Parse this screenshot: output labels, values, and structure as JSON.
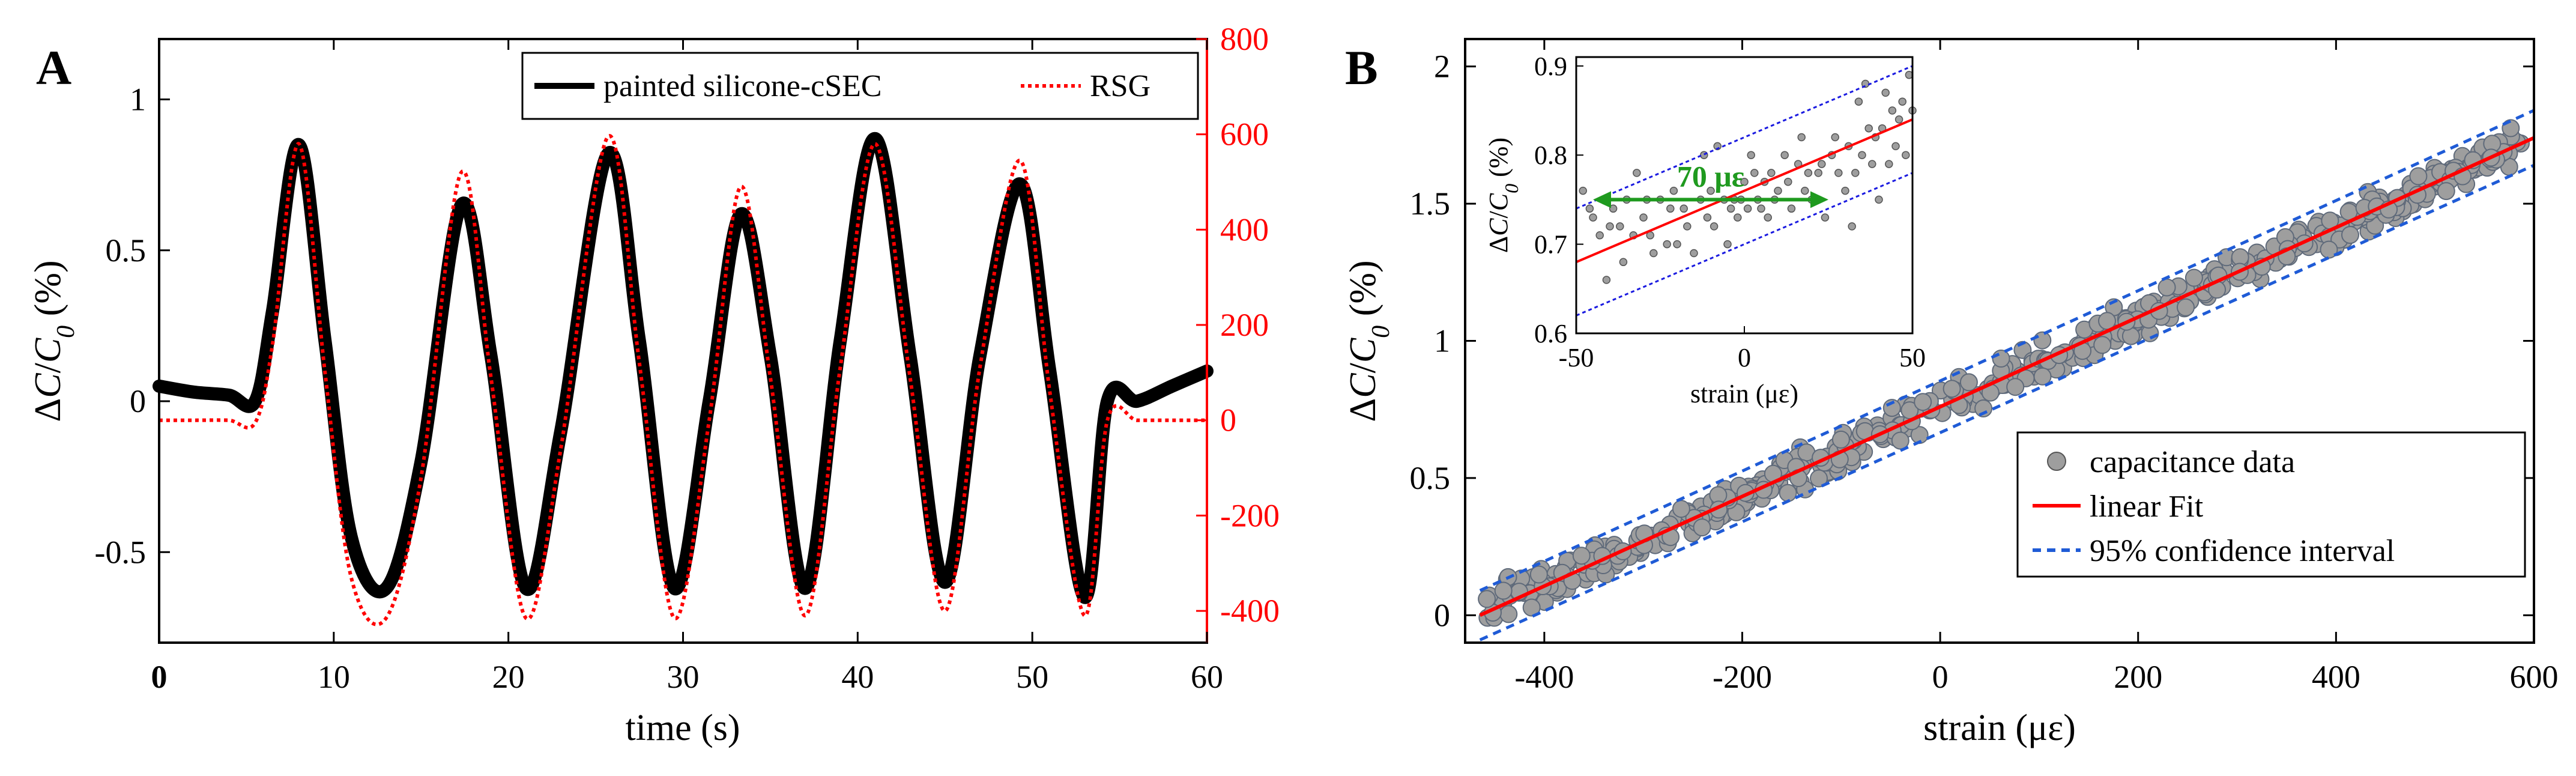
{
  "chart_data": [
    {
      "panel": "A",
      "type": "line",
      "xlabel": "time (s)",
      "ylabel_left": "ΔC/C₀ (%)",
      "ylabel_left_parts": {
        "delta": "Δ",
        "c": "C",
        "slash": "/",
        "c0": "C",
        "sub": "0",
        "unit": " (%)"
      },
      "ylabel_right": "",
      "xlim": [
        0,
        60
      ],
      "ylim_left": [
        -0.8,
        1.2
      ],
      "ylim_right": [
        -466.7,
        800
      ],
      "xticks": [
        "0",
        "10",
        "20",
        "30",
        "40",
        "50",
        "60"
      ],
      "yticks_left": [
        "-0.5",
        "0",
        "0.5",
        "1"
      ],
      "yticks_right": [
        "-400",
        "-200",
        "0",
        "200",
        "400",
        "600",
        "800"
      ],
      "grid": false,
      "legend_position": "top-right",
      "series": [
        {
          "name": "painted silicone-cSEC",
          "axis": "left",
          "color": "#000000",
          "style": "solid-thick",
          "x": [
            0,
            2,
            4,
            5.5,
            6.5,
            8,
            9.5,
            11,
            13,
            15,
            17.3,
            19,
            21,
            23,
            25.7,
            27.5,
            29.5,
            31.5,
            33.3,
            35,
            37,
            39,
            41,
            43,
            45,
            47,
            49.3,
            51,
            53,
            54.3,
            56,
            58,
            60
          ],
          "y": [
            0.05,
            0.03,
            0.02,
            0.0,
            0.3,
            0.85,
            0.2,
            -0.45,
            -0.62,
            -0.2,
            0.65,
            0.15,
            -0.62,
            -0.1,
            0.82,
            0.2,
            -0.62,
            0.0,
            0.62,
            0.15,
            -0.62,
            0.2,
            0.87,
            0.15,
            -0.6,
            0.15,
            0.72,
            0.1,
            -0.65,
            0.0,
            0.0,
            0.05,
            0.1
          ]
        },
        {
          "name": "RSG",
          "axis": "right",
          "color": "#ff0000",
          "style": "dotted",
          "x": [
            0,
            2,
            4,
            5.5,
            6.5,
            8,
            9.5,
            11,
            13,
            15,
            17.3,
            19,
            21,
            23,
            25.7,
            27.5,
            29.5,
            31.5,
            33.3,
            35,
            37,
            39,
            41,
            43,
            45,
            47,
            49.3,
            51,
            53,
            54.3,
            56,
            58,
            60
          ],
          "y": [
            0,
            0,
            0,
            -5,
            160,
            580,
            100,
            -330,
            -415,
            -120,
            520,
            90,
            -415,
            -60,
            595,
            120,
            -415,
            0,
            490,
            90,
            -410,
            110,
            580,
            90,
            -400,
            110,
            545,
            60,
            -410,
            0,
            0,
            0,
            0
          ]
        }
      ]
    },
    {
      "panel": "B",
      "type": "scatter",
      "xlabel": "strain (με)",
      "ylabel": "ΔC/C₀ (%)",
      "ylabel_parts": {
        "delta": "Δ",
        "c": "C",
        "slash": "/",
        "c0": "C",
        "sub": "0",
        "unit": " (%)"
      },
      "xlim": [
        -480,
        600
      ],
      "ylim": [
        -0.1,
        2.1
      ],
      "xticks": [
        "-400",
        "-200",
        "0",
        "200",
        "400",
        "600"
      ],
      "yticks": [
        "0",
        "0.5",
        "1",
        "1.5",
        "2"
      ],
      "grid": false,
      "legend_position": "bottom-right",
      "series": [
        {
          "name": "capacitance data",
          "color": "#9e9e9e",
          "marker": "circle",
          "x_range": [
            -460,
            590
          ],
          "slope": 0.00163,
          "intercept": 0.76,
          "spread": 0.05
        },
        {
          "name": "linear Fit",
          "color": "#ff0000",
          "style": "solid",
          "x": [
            -465,
            600
          ],
          "y": [
            0.0,
            1.74
          ]
        },
        {
          "name": "95% confidence interval",
          "color": "#1f5bd6",
          "style": "dashed",
          "upper_x": [
            -465,
            600
          ],
          "upper_y": [
            0.09,
            1.84
          ],
          "lower_x": [
            -465,
            600
          ],
          "lower_y": [
            -0.09,
            1.64
          ]
        }
      ],
      "inset": {
        "xlabel": "strain (με)",
        "ylabel": "ΔC/C₀ (%)",
        "ylabel_parts": {
          "delta": "Δ",
          "c": "C",
          "slash": "/",
          "c0": "C",
          "sub": "0",
          "unit": " (%)"
        },
        "xlim": [
          -50,
          50
        ],
        "ylim": [
          0.6,
          0.91
        ],
        "xticks": [
          "-50",
          "0",
          "50"
        ],
        "yticks": [
          "0.6",
          "0.7",
          "0.8",
          "0.9"
        ],
        "fit": {
          "x": [
            -50,
            50
          ],
          "y": [
            0.68,
            0.84
          ]
        },
        "ci_upper": {
          "x": [
            -50,
            50
          ],
          "y": [
            0.74,
            0.9
          ]
        },
        "ci_lower": {
          "x": [
            -50,
            50
          ],
          "y": [
            0.62,
            0.78
          ]
        },
        "annotation": {
          "text": "70 με",
          "x_from": -45,
          "x_to": 25,
          "y": 0.75
        },
        "points": [
          [
            -48,
            0.76
          ],
          [
            -46,
            0.74
          ],
          [
            -45,
            0.73
          ],
          [
            -43,
            0.71
          ],
          [
            -42,
            0.75
          ],
          [
            -41,
            0.66
          ],
          [
            -40,
            0.72
          ],
          [
            -39,
            0.74
          ],
          [
            -37,
            0.72
          ],
          [
            -36,
            0.68
          ],
          [
            -35,
            0.75
          ],
          [
            -33,
            0.71
          ],
          [
            -32,
            0.78
          ],
          [
            -30,
            0.73
          ],
          [
            -29,
            0.75
          ],
          [
            -28,
            0.71
          ],
          [
            -27,
            0.69
          ],
          [
            -25,
            0.75
          ],
          [
            -23,
            0.7
          ],
          [
            -22,
            0.74
          ],
          [
            -21,
            0.76
          ],
          [
            -20,
            0.7
          ],
          [
            -18,
            0.74
          ],
          [
            -17,
            0.72
          ],
          [
            -15,
            0.69
          ],
          [
            -13,
            0.75
          ],
          [
            -12,
            0.8
          ],
          [
            -11,
            0.73
          ],
          [
            -10,
            0.76
          ],
          [
            -9,
            0.72
          ],
          [
            -8,
            0.81
          ],
          [
            -6,
            0.75
          ],
          [
            -5,
            0.7
          ],
          [
            -4,
            0.74
          ],
          [
            -3,
            0.75
          ],
          [
            -2,
            0.73
          ],
          [
            -1,
            0.75
          ],
          [
            0,
            0.77
          ],
          [
            1,
            0.74
          ],
          [
            2,
            0.8
          ],
          [
            3,
            0.78
          ],
          [
            4,
            0.75
          ],
          [
            5,
            0.74
          ],
          [
            6,
            0.77
          ],
          [
            7,
            0.73
          ],
          [
            8,
            0.78
          ],
          [
            9,
            0.75
          ],
          [
            10,
            0.76
          ],
          [
            12,
            0.8
          ],
          [
            13,
            0.77
          ],
          [
            14,
            0.74
          ],
          [
            16,
            0.79
          ],
          [
            17,
            0.82
          ],
          [
            18,
            0.76
          ],
          [
            19,
            0.78
          ],
          [
            20,
            0.75
          ],
          [
            22,
            0.78
          ],
          [
            23,
            0.79
          ],
          [
            24,
            0.73
          ],
          [
            26,
            0.8
          ],
          [
            27,
            0.82
          ],
          [
            28,
            0.78
          ],
          [
            30,
            0.76
          ],
          [
            31,
            0.81
          ],
          [
            32,
            0.72
          ],
          [
            33,
            0.78
          ],
          [
            34,
            0.86
          ],
          [
            35,
            0.8
          ],
          [
            36,
            0.88
          ],
          [
            37,
            0.83
          ],
          [
            38,
            0.79
          ],
          [
            39,
            0.82
          ],
          [
            40,
            0.75
          ],
          [
            41,
            0.83
          ],
          [
            42,
            0.87
          ],
          [
            43,
            0.79
          ],
          [
            44,
            0.85
          ],
          [
            45,
            0.81
          ],
          [
            46,
            0.84
          ],
          [
            47,
            0.86
          ],
          [
            48,
            0.8
          ],
          [
            49,
            0.89
          ],
          [
            50,
            0.85
          ]
        ]
      }
    }
  ],
  "labels": {
    "panel_a": "A",
    "panel_b": "B"
  }
}
